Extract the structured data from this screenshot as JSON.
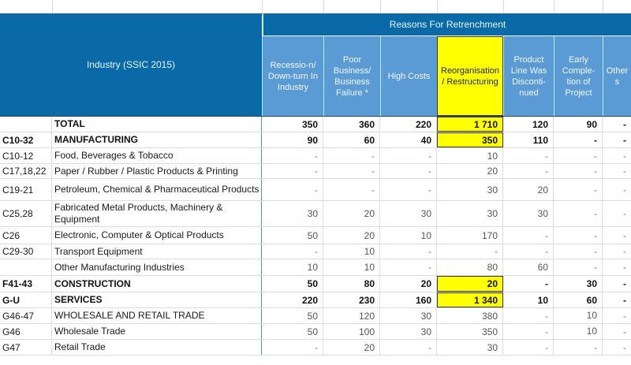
{
  "header": {
    "industry_label": "Industry (SSIC 2015)",
    "group_label": "Reasons For Retrenchment",
    "columns": [
      {
        "label": "Recessio-n/ Down-turn In Industry",
        "highlight": false
      },
      {
        "label": "Poor Business/ Business Failure *",
        "highlight": false
      },
      {
        "label": "High Costs",
        "highlight": false
      },
      {
        "label": "Reorganisation / Restructuring",
        "highlight": true
      },
      {
        "label": "Product Line Was Disconti- nued",
        "highlight": false
      },
      {
        "label": "Early Comple- tion of Project",
        "highlight": false
      },
      {
        "label": "Other s",
        "highlight": false
      }
    ]
  },
  "highlight_color": "#ffff00",
  "header_color": "#0a6aa8",
  "subheader_color": "#5b9bd5",
  "rows": [
    {
      "code": "",
      "name": "TOTAL",
      "bold": true,
      "values": [
        "350",
        "360",
        "220",
        "1 710",
        "120",
        "90",
        "-"
      ],
      "hl": true
    },
    {
      "code": "C10-32",
      "name": "MANUFACTURING",
      "bold": true,
      "values": [
        "90",
        "60",
        "40",
        "350",
        "110",
        "-",
        "-"
      ],
      "hl": true
    },
    {
      "code": "C10-12",
      "name": "Food, Beverages & Tobacco",
      "bold": false,
      "values": [
        "-",
        "-",
        "-",
        "10",
        "-",
        "-",
        "-"
      ],
      "hl": false
    },
    {
      "code": "C17,18,22",
      "name": "Paper / Rubber / Plastic Products & Printing",
      "bold": false,
      "values": [
        "-",
        "-",
        "-",
        "20",
        "-",
        "-",
        "-"
      ],
      "hl": false
    },
    {
      "code": "C19-21",
      "name": "Petroleum, Chemical & Pharmaceutical Products",
      "bold": false,
      "values": [
        "-",
        "-",
        "-",
        "30",
        "20",
        "-",
        "-"
      ],
      "hl": false
    },
    {
      "code": "C25,28",
      "name": "Fabricated Metal Products, Machinery & Equipment",
      "bold": false,
      "values": [
        "30",
        "20",
        "30",
        "30",
        "30",
        "-",
        "-"
      ],
      "hl": false
    },
    {
      "code": "C26",
      "name": "Electronic, Computer & Optical Products",
      "bold": false,
      "values": [
        "50",
        "20",
        "10",
        "170",
        "-",
        "-",
        "-"
      ],
      "hl": false
    },
    {
      "code": "C29-30",
      "name": "Transport Equipment",
      "bold": false,
      "values": [
        "-",
        "10",
        "-",
        "-",
        "-",
        "-",
        "-"
      ],
      "hl": false
    },
    {
      "code": "",
      "name": "Other Manufacturing Industries",
      "bold": false,
      "values": [
        "10",
        "10",
        "-",
        "80",
        "60",
        "-",
        "-"
      ],
      "hl": false
    },
    {
      "code": "F41-43",
      "name": "CONSTRUCTION",
      "bold": true,
      "values": [
        "50",
        "80",
        "20",
        "20",
        "-",
        "30",
        "-"
      ],
      "hl": true
    },
    {
      "code": "G-U",
      "name": "SERVICES",
      "bold": true,
      "values": [
        "220",
        "230",
        "160",
        "1 340",
        "10",
        "60",
        "-"
      ],
      "hl": true
    },
    {
      "code": "G46-47",
      "name": "WHOLESALE AND RETAIL TRADE",
      "bold": false,
      "values": [
        "50",
        "120",
        "30",
        "380",
        "-",
        "10",
        "-"
      ],
      "hl": false
    },
    {
      "code": "G46",
      "name": "Wholesale Trade",
      "bold": false,
      "values": [
        "50",
        "100",
        "30",
        "350",
        "-",
        "10",
        "-"
      ],
      "hl": false
    },
    {
      "code": "G47",
      "name": "Retail Trade",
      "bold": false,
      "values": [
        "-",
        "20",
        "-",
        "30",
        "-",
        "-",
        "-"
      ],
      "hl": false
    }
  ]
}
